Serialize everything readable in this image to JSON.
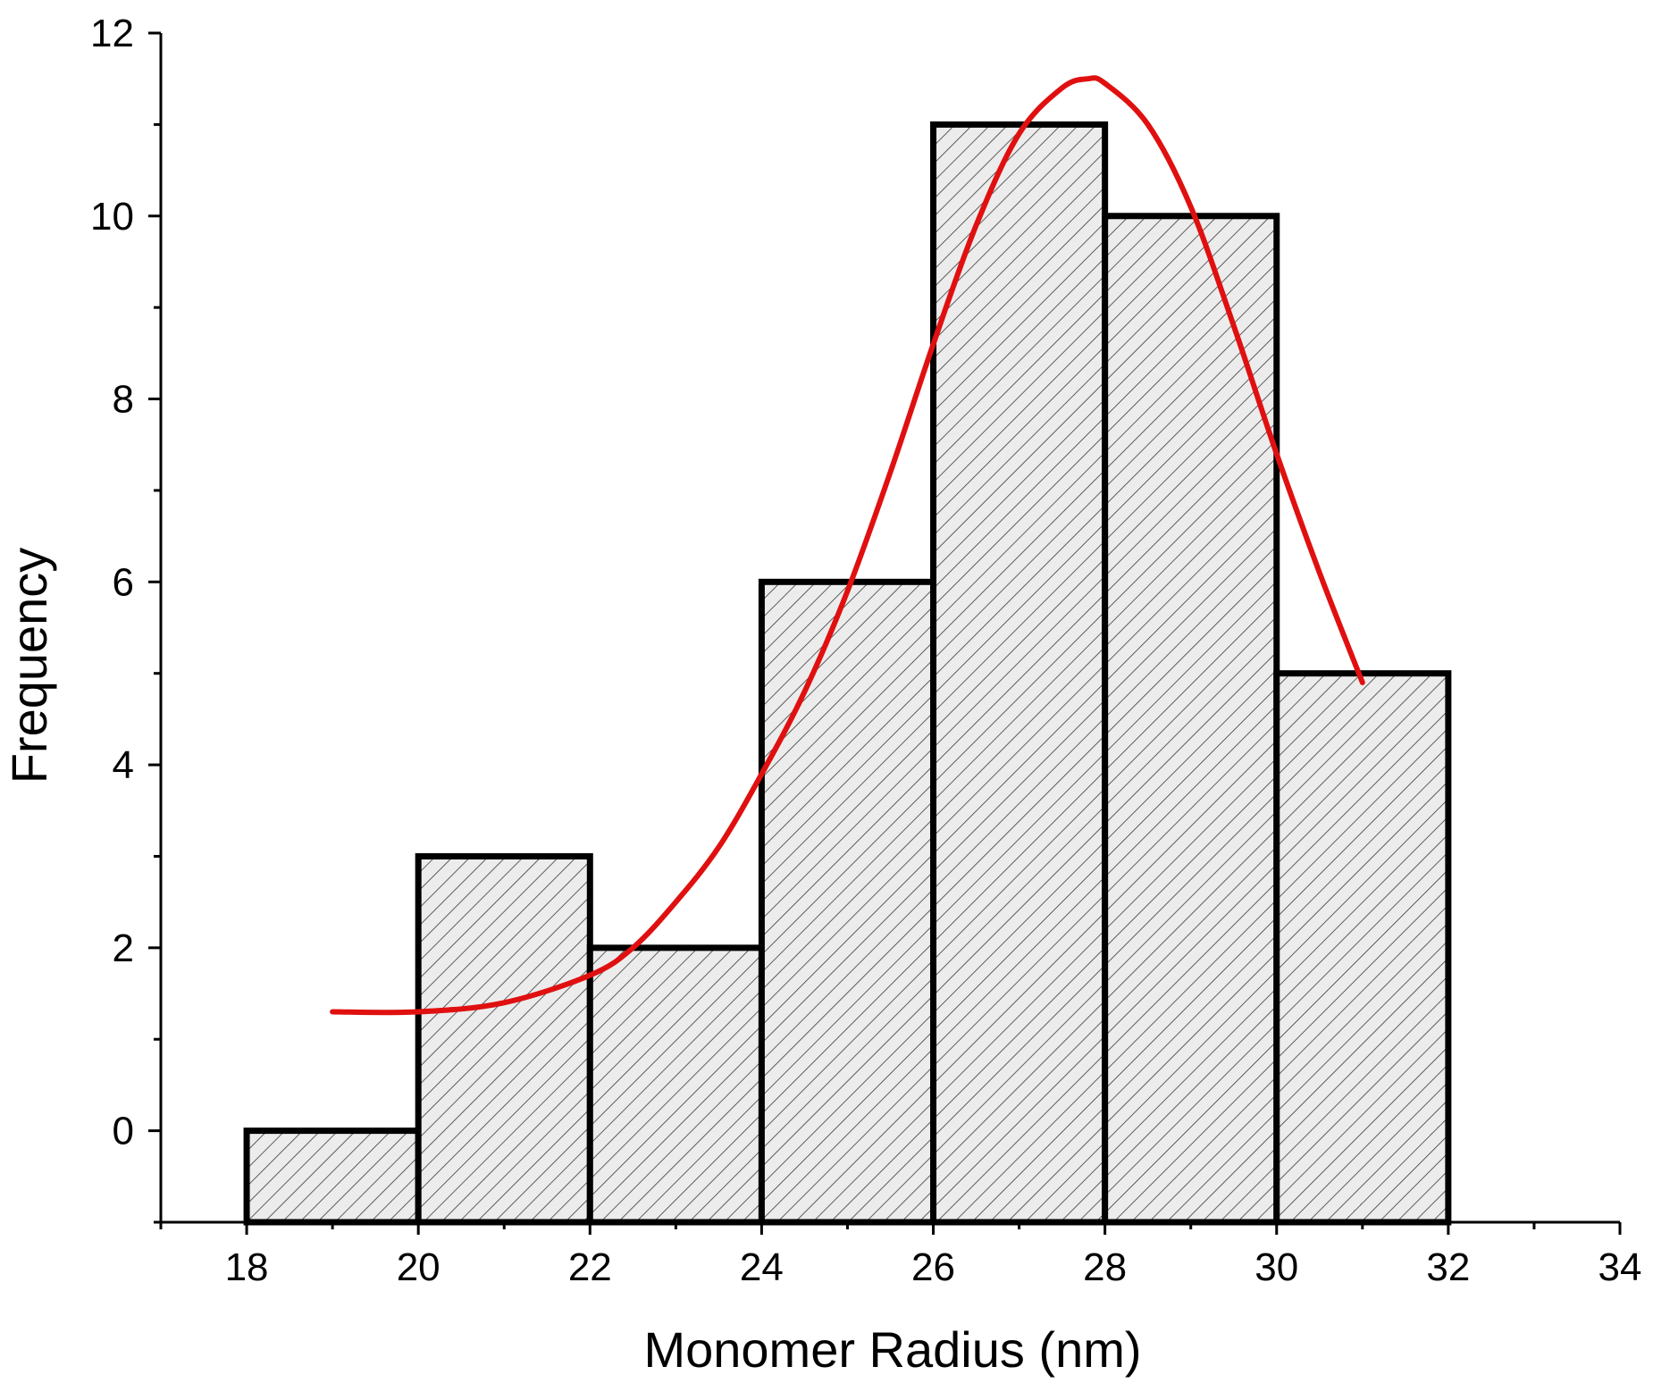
{
  "chart_data": {
    "type": "bar",
    "subtype": "histogram",
    "title": "",
    "xlabel": "Monomer Radius (nm)",
    "ylabel": "Frequency",
    "xlim": [
      17,
      34
    ],
    "ylim": [
      -1,
      12
    ],
    "x_ticks": [
      18,
      20,
      22,
      24,
      26,
      28,
      30,
      32,
      34
    ],
    "y_ticks": [
      0,
      2,
      4,
      6,
      8,
      10,
      12
    ],
    "bins": [
      {
        "x0": 18,
        "x1": 20,
        "count": 0
      },
      {
        "x0": 20,
        "x1": 22,
        "count": 3
      },
      {
        "x0": 22,
        "x1": 24,
        "count": 2
      },
      {
        "x0": 24,
        "x1": 26,
        "count": 6
      },
      {
        "x0": 26,
        "x1": 28,
        "count": 11
      },
      {
        "x0": 28,
        "x1": 30,
        "count": 10
      },
      {
        "x0": 30,
        "x1": 32,
        "count": 5
      }
    ],
    "fit_curve": {
      "color": "#e01010",
      "x": [
        19.0,
        20.0,
        21.0,
        22.0,
        22.5,
        23.0,
        23.5,
        24.0,
        24.5,
        25.0,
        25.5,
        26.0,
        26.5,
        27.0,
        27.5,
        27.8,
        28.0,
        28.5,
        29.0,
        29.5,
        30.0,
        30.5,
        31.0
      ],
      "y": [
        1.3,
        1.3,
        1.4,
        1.7,
        2.0,
        2.5,
        3.1,
        3.9,
        4.8,
        5.9,
        7.2,
        8.6,
        9.9,
        10.9,
        11.4,
        11.5,
        11.45,
        11.0,
        10.1,
        8.8,
        7.4,
        6.1,
        4.9
      ]
    },
    "bar_fill": "#ececec",
    "bar_stroke": "#000000",
    "hatch": "diagonal",
    "grid": false,
    "legend": "none"
  }
}
